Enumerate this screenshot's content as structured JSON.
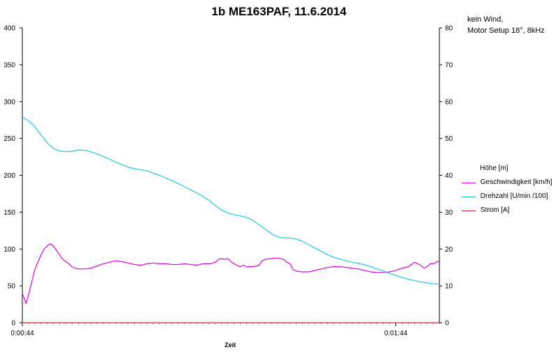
{
  "chart_data": {
    "type": "line",
    "title": "1b ME163PAF, 11.6.2014",
    "note_lines": [
      "kein Wind,",
      "Motor Setup 18°, 8kHz"
    ],
    "xlabel": "Zeit",
    "x_tick_labels": [
      "0:00:44",
      "0:01:44"
    ],
    "x_range": [
      44,
      111
    ],
    "x_tick_values": [
      44,
      104
    ],
    "y_left": {
      "min": 0,
      "max": 400,
      "ticks": [
        0,
        50,
        100,
        150,
        200,
        250,
        300,
        350,
        400
      ]
    },
    "y_right": {
      "min": 0,
      "max": 80,
      "ticks": [
        0,
        10,
        20,
        30,
        40,
        50,
        60,
        70,
        80
      ]
    },
    "grid": false,
    "legend_position": "right",
    "series": [
      {
        "name": "Höhe [m]",
        "color": "",
        "axis": "left",
        "points": []
      },
      {
        "name": "Geschwindigkeit [km/h]",
        "color": "#e000e0",
        "axis": "left",
        "points": [
          [
            44,
            40
          ],
          [
            44.3,
            33
          ],
          [
            44.6,
            26
          ],
          [
            45,
            38
          ],
          [
            45.5,
            55
          ],
          [
            46,
            72
          ],
          [
            46.5,
            82
          ],
          [
            47,
            92
          ],
          [
            47.5,
            100
          ],
          [
            48,
            104
          ],
          [
            48.5,
            107
          ],
          [
            49,
            104
          ],
          [
            49.5,
            98
          ],
          [
            50,
            92
          ],
          [
            50.5,
            86
          ],
          [
            51,
            83
          ],
          [
            51.5,
            80
          ],
          [
            52,
            76
          ],
          [
            52.5,
            74
          ],
          [
            53,
            73
          ],
          [
            54,
            73
          ],
          [
            55,
            74
          ],
          [
            56,
            77
          ],
          [
            57,
            80
          ],
          [
            58,
            82
          ],
          [
            59,
            84
          ],
          [
            60,
            83
          ],
          [
            61,
            81
          ],
          [
            62,
            79
          ],
          [
            63,
            78
          ],
          [
            64,
            80
          ],
          [
            65,
            81
          ],
          [
            66,
            80
          ],
          [
            67,
            80
          ],
          [
            68,
            79
          ],
          [
            69,
            79
          ],
          [
            70,
            80
          ],
          [
            71,
            79
          ],
          [
            72,
            78
          ],
          [
            73,
            80
          ],
          [
            74,
            80
          ],
          [
            75,
            82
          ],
          [
            75.5,
            86
          ],
          [
            76,
            87
          ],
          [
            76.5,
            86
          ],
          [
            77,
            87
          ],
          [
            77.5,
            83
          ],
          [
            78,
            80
          ],
          [
            79,
            76
          ],
          [
            79.5,
            78
          ],
          [
            80,
            76
          ],
          [
            81,
            76
          ],
          [
            82,
            78
          ],
          [
            82.5,
            84
          ],
          [
            83,
            86
          ],
          [
            84,
            87
          ],
          [
            85,
            88
          ],
          [
            86,
            86
          ],
          [
            86.5,
            82
          ],
          [
            87,
            80
          ],
          [
            87.5,
            72
          ],
          [
            88,
            70
          ],
          [
            89,
            69
          ],
          [
            90,
            69
          ],
          [
            91,
            71
          ],
          [
            92,
            73
          ],
          [
            93,
            75
          ],
          [
            94,
            76
          ],
          [
            95,
            76
          ],
          [
            96,
            75
          ],
          [
            97,
            74
          ],
          [
            98,
            73
          ],
          [
            99,
            71
          ],
          [
            100,
            69
          ],
          [
            101,
            68
          ],
          [
            102,
            68
          ],
          [
            103,
            69
          ],
          [
            104,
            71
          ],
          [
            105,
            74
          ],
          [
            106,
            76
          ],
          [
            106.5,
            79
          ],
          [
            107,
            82
          ],
          [
            107.5,
            80
          ],
          [
            108,
            78
          ],
          [
            108.5,
            74
          ],
          [
            109,
            76
          ],
          [
            109.5,
            80
          ],
          [
            110,
            80
          ],
          [
            110.5,
            82
          ],
          [
            111,
            84
          ]
        ]
      },
      {
        "name": "Drehzahl [U/min /100]",
        "color": "#20c8e0",
        "axis": "right",
        "points": [
          [
            44,
            55.8
          ],
          [
            45,
            54.8
          ],
          [
            46,
            53.2
          ],
          [
            47,
            51.0
          ],
          [
            48,
            48.8
          ],
          [
            49,
            47.3
          ],
          [
            50,
            46.6
          ],
          [
            51,
            46.4
          ],
          [
            52,
            46.5
          ],
          [
            53,
            46.9
          ],
          [
            54,
            46.8
          ],
          [
            55,
            46.4
          ],
          [
            56,
            45.8
          ],
          [
            57,
            45.1
          ],
          [
            58,
            44.4
          ],
          [
            59,
            43.6
          ],
          [
            60,
            42.9
          ],
          [
            61,
            42.2
          ],
          [
            62,
            41.8
          ],
          [
            63,
            41.5
          ],
          [
            64,
            41.2
          ],
          [
            65,
            40.6
          ],
          [
            66,
            40.0
          ],
          [
            67,
            39.3
          ],
          [
            68,
            38.6
          ],
          [
            69,
            37.8
          ],
          [
            70,
            37.0
          ],
          [
            71,
            36.1
          ],
          [
            72,
            35.2
          ],
          [
            73,
            34.3
          ],
          [
            74,
            33.2
          ],
          [
            75,
            31.8
          ],
          [
            76,
            30.6
          ],
          [
            77,
            29.8
          ],
          [
            78,
            29.3
          ],
          [
            79,
            29.0
          ],
          [
            80,
            28.6
          ],
          [
            81,
            27.8
          ],
          [
            82,
            26.6
          ],
          [
            83,
            25.4
          ],
          [
            84,
            24.2
          ],
          [
            85,
            23.3
          ],
          [
            86,
            23.0
          ],
          [
            87,
            23.0
          ],
          [
            88,
            22.7
          ],
          [
            89,
            22.1
          ],
          [
            90,
            21.2
          ],
          [
            91,
            20.3
          ],
          [
            92,
            19.4
          ],
          [
            93,
            18.5
          ],
          [
            94,
            17.8
          ],
          [
            95,
            17.3
          ],
          [
            96,
            16.8
          ],
          [
            97,
            16.4
          ],
          [
            98,
            16.1
          ],
          [
            99,
            15.7
          ],
          [
            100,
            15.2
          ],
          [
            101,
            14.6
          ],
          [
            102,
            14.0
          ],
          [
            103,
            13.4
          ],
          [
            104,
            12.8
          ],
          [
            105,
            12.3
          ],
          [
            106,
            11.8
          ],
          [
            107,
            11.4
          ],
          [
            108,
            11.1
          ],
          [
            109,
            10.8
          ],
          [
            110,
            10.6
          ],
          [
            111,
            10.5
          ]
        ]
      },
      {
        "name": "Strom [A]",
        "color": "#e02040",
        "axis": "right",
        "points": [
          [
            44,
            0
          ],
          [
            111,
            0
          ]
        ]
      }
    ]
  }
}
